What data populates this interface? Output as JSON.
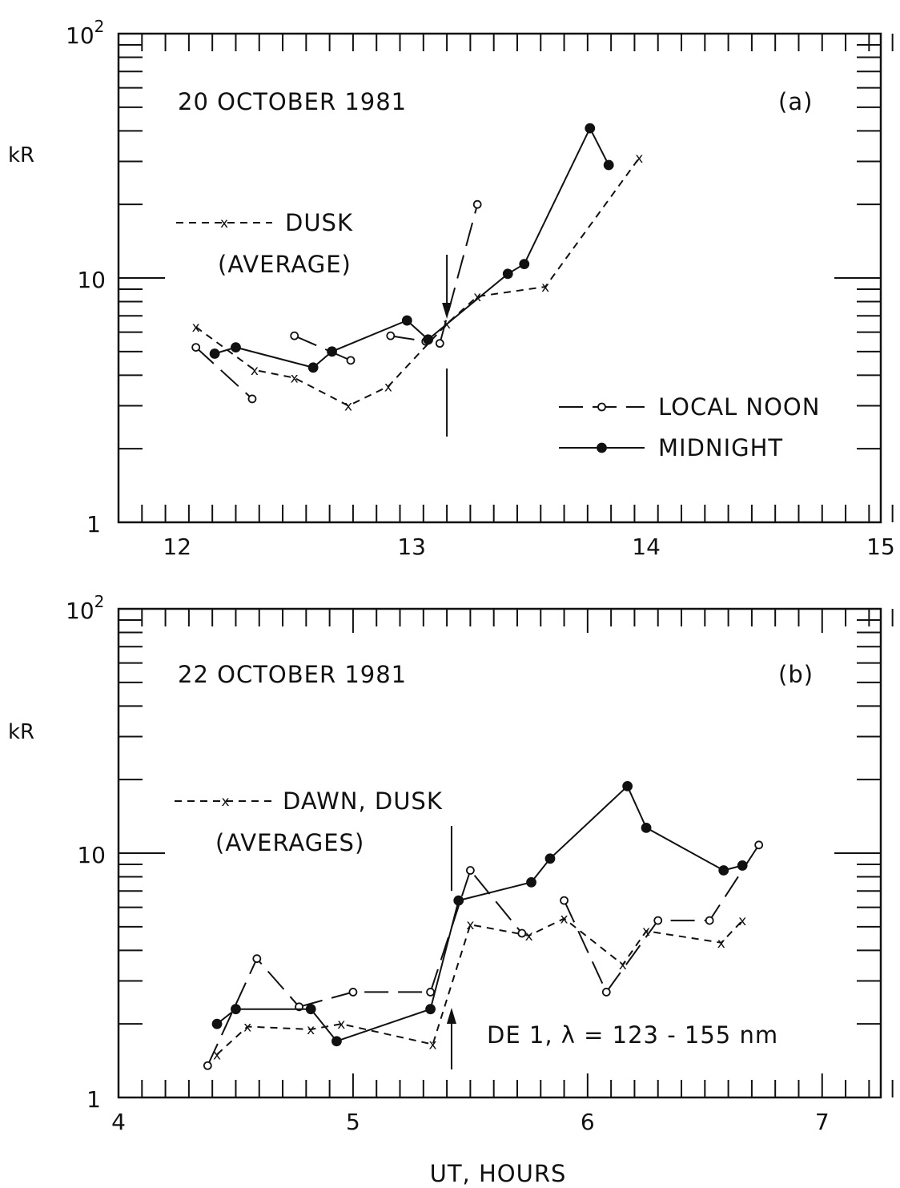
{
  "chart_data": [
    {
      "panel": "a",
      "type": "line",
      "title": "20 OCTOBER 1981",
      "panel_label": "(a)",
      "ylabel": "kR",
      "xlabel": "",
      "yscale": "log",
      "xlim": [
        11.75,
        15
      ],
      "ylim": [
        1,
        100
      ],
      "x_ticks": [
        "12",
        "13",
        "14",
        "15"
      ],
      "y_ticks": [
        "1",
        "10",
        "10^2"
      ],
      "grid": false,
      "legend": {
        "items": [
          {
            "label": "DUSK",
            "label2": "(AVERAGE)",
            "series": "dusk"
          },
          {
            "label": "LOCAL  NOON",
            "series": "noon"
          },
          {
            "label": "MIDNIGHT",
            "series": "midnight"
          }
        ]
      },
      "event_marker_x": 13.15,
      "series": [
        {
          "id": "dusk",
          "style": "short-dash",
          "marker": "x",
          "x": [
            12.08,
            12.33,
            12.5,
            12.73,
            12.9,
            13.15,
            13.28,
            13.57,
            13.97
          ],
          "y": [
            6.3,
            4.2,
            3.9,
            3.0,
            3.6,
            6.5,
            8.4,
            9.2,
            31
          ]
        },
        {
          "id": "noon",
          "style": "long-dash",
          "marker": "open-circle",
          "segments": [
            {
              "x": [
                12.08,
                12.32
              ],
              "y": [
                5.2,
                3.2
              ]
            },
            {
              "x": [
                12.5,
                12.74
              ],
              "y": [
                5.8,
                4.6
              ]
            },
            {
              "x": [
                12.91,
                13.06
              ],
              "y": [
                5.8,
                5.5
              ]
            },
            {
              "x": [
                13.12,
                13.28
              ],
              "y": [
                5.4,
                20
              ]
            }
          ]
        },
        {
          "id": "midnight",
          "style": "solid",
          "marker": "filled-circle",
          "x": [
            12.16,
            12.25,
            12.58,
            12.66,
            12.98,
            13.07,
            13.41,
            13.48,
            13.76,
            13.84
          ],
          "y": [
            4.9,
            5.2,
            4.3,
            5.0,
            6.7,
            5.6,
            10.4,
            11.4,
            41,
            29
          ]
        }
      ]
    },
    {
      "panel": "b",
      "type": "line",
      "title": "22 OCTOBER 1981",
      "panel_label": "(b)",
      "ylabel": "kR",
      "xlabel": "UT,  HOURS",
      "yscale": "log",
      "xlim": [
        4,
        7.25
      ],
      "ylim": [
        1,
        100
      ],
      "x_ticks": [
        "4",
        "5",
        "6",
        "7"
      ],
      "y_ticks": [
        "1",
        "10",
        "10^2"
      ],
      "grid": false,
      "legend": {
        "items": [
          {
            "label": "DAWN,  DUSK",
            "label2": "(AVERAGES)",
            "series": "dawn_dusk"
          }
        ]
      },
      "annotation": "DE 1,  λ = 123 - 155 nm",
      "event_marker_x": 5.42,
      "series": [
        {
          "id": "dawn_dusk",
          "style": "short-dash",
          "marker": "x",
          "x": [
            4.42,
            4.55,
            4.82,
            4.95,
            5.34,
            5.5,
            5.75,
            5.9,
            6.15,
            6.25,
            6.57,
            6.66
          ],
          "y": [
            1.5,
            1.95,
            1.9,
            2.0,
            1.65,
            5.1,
            4.6,
            5.4,
            3.5,
            4.8,
            4.3,
            5.3
          ]
        },
        {
          "id": "noon",
          "style": "long-dash",
          "marker": "open-circle",
          "segments": [
            {
              "x": [
                4.38,
                4.59,
                4.77
              ],
              "y": [
                1.35,
                3.7,
                2.35
              ]
            },
            {
              "x": [
                4.77,
                5.0,
                5.33
              ],
              "y": [
                2.35,
                2.7,
                2.7
              ]
            },
            {
              "x": [
                5.33,
                5.5,
                5.72
              ],
              "y": [
                2.7,
                8.5,
                4.7
              ]
            },
            {
              "x": [
                5.9,
                6.08
              ],
              "y": [
                6.4,
                2.7
              ]
            },
            {
              "x": [
                6.08,
                6.3,
                6.52,
                6.73
              ],
              "y": [
                2.7,
                5.3,
                5.3,
                10.8
              ]
            }
          ]
        },
        {
          "id": "midnight",
          "style": "solid",
          "marker": "filled-circle",
          "x": [
            4.42,
            4.5,
            4.82,
            4.93,
            5.33,
            5.45,
            5.76,
            5.84,
            6.17,
            6.25,
            6.58,
            6.66
          ],
          "y": [
            2.0,
            2.3,
            2.3,
            1.7,
            2.3,
            6.4,
            7.6,
            9.5,
            18.8,
            12.7,
            8.5,
            8.9
          ]
        }
      ]
    }
  ]
}
